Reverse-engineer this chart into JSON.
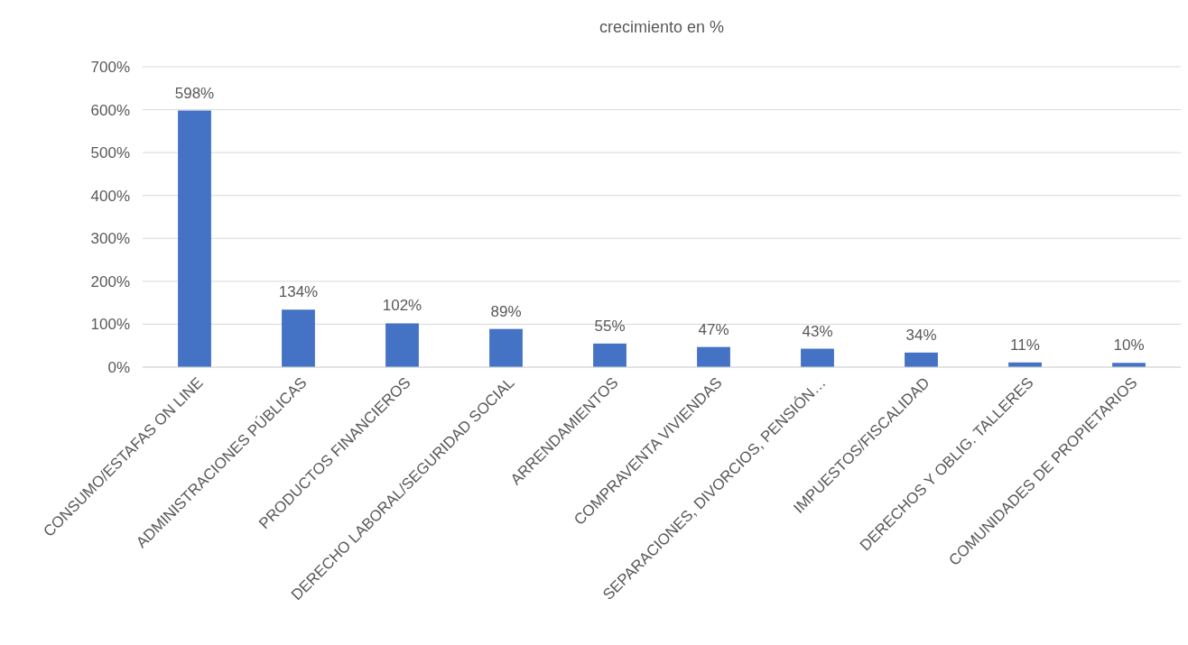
{
  "chart_data": {
    "type": "bar",
    "title": "crecimiento en %",
    "categories": [
      "CONSUMO/ESTAFAS ON LINE",
      "ADMINISTRACIONES PÚBLICAS",
      "PRODUCTOS FINANCIEROS",
      "DERECHO LABORAL/SEGURIDAD SOCIAL",
      "ARRENDAMIENTOS",
      "COMPRAVENTA VIVIENDAS",
      "SEPARACIONES, DIVORCIOS, PENSIÓN…",
      "IMPUESTOS/FISCALIDAD",
      "DERECHOS Y OBLIG. TALLERES",
      "COMUNIDADES DE PROPIETARIOS"
    ],
    "values": [
      598,
      134,
      102,
      89,
      55,
      47,
      43,
      34,
      11,
      10
    ],
    "value_labels": [
      "598%",
      "134%",
      "102%",
      "89%",
      "55%",
      "47%",
      "43%",
      "34%",
      "11%",
      "10%"
    ],
    "color": "#4472c4",
    "ylim": [
      0,
      700
    ],
    "yticks": [
      {
        "value": 0,
        "label": "0%"
      },
      {
        "value": 100,
        "label": "100%"
      },
      {
        "value": 200,
        "label": "200%"
      },
      {
        "value": 300,
        "label": "300%"
      },
      {
        "value": 400,
        "label": "400%"
      },
      {
        "value": 500,
        "label": "500%"
      },
      {
        "value": 600,
        "label": "600%"
      },
      {
        "value": 700,
        "label": "700%"
      }
    ],
    "grid": "y"
  }
}
